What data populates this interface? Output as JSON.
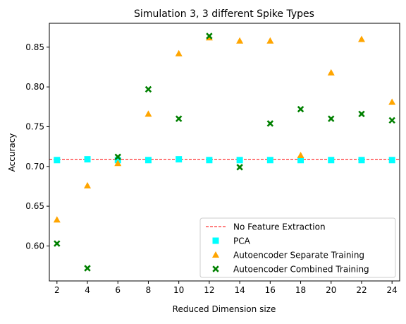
{
  "chart_data": {
    "type": "scatter",
    "title": "Simulation 3, 3 different Spike Types",
    "xlabel": "Reduced Dimension size",
    "ylabel": "Accuracy",
    "xlim": [
      1.5,
      24.5
    ],
    "ylim": [
      0.556,
      0.88
    ],
    "xticks": [
      2,
      4,
      6,
      8,
      10,
      12,
      14,
      16,
      18,
      20,
      22,
      24
    ],
    "yticks": [
      0.6,
      0.65,
      0.7,
      0.75,
      0.8,
      0.85
    ],
    "ytick_labels": [
      "0.60",
      "0.65",
      "0.70",
      "0.75",
      "0.80",
      "0.85"
    ],
    "grid": false,
    "legend_position": "lower-right",
    "baseline": {
      "name": "No Feature Extraction",
      "y": 0.709,
      "color": "#ff0000",
      "style": "dashed"
    },
    "x": [
      2,
      4,
      6,
      8,
      10,
      12,
      14,
      16,
      18,
      20,
      22,
      24
    ],
    "series": [
      {
        "name": "PCA",
        "marker": "square",
        "color": "#00ffff",
        "values": [
          0.708,
          0.709,
          0.708,
          0.708,
          0.709,
          0.708,
          0.708,
          0.708,
          0.708,
          0.708,
          0.708,
          0.708
        ]
      },
      {
        "name": "Autoencoder Separate Training",
        "marker": "triangle",
        "color": "#ffa500",
        "values": [
          0.633,
          0.676,
          0.704,
          0.766,
          0.842,
          0.862,
          0.858,
          0.858,
          0.714,
          0.818,
          0.86,
          0.781
        ]
      },
      {
        "name": "Autoencoder Combined Training",
        "marker": "x",
        "color": "#008000",
        "values": [
          0.603,
          0.572,
          0.712,
          0.797,
          0.76,
          0.864,
          0.699,
          0.754,
          0.772,
          0.76,
          0.766,
          0.758
        ]
      }
    ]
  }
}
